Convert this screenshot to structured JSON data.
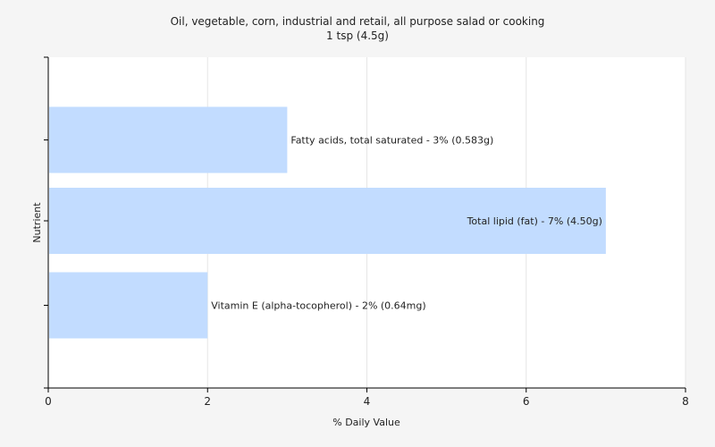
{
  "chart_data": {
    "type": "bar",
    "orientation": "horizontal",
    "title": "Oil, vegetable, corn, industrial and retail, all purpose salad or cooking",
    "subtitle": "1 tsp (4.5g)",
    "xlabel": "% Daily Value",
    "ylabel": "Nutrient",
    "xlim": [
      0,
      8
    ],
    "xticks": [
      0,
      2,
      4,
      6,
      8
    ],
    "grid": true,
    "bar_color": "#c2dcff",
    "categories": [
      "Fatty acids, total saturated",
      "Total lipid (fat)",
      "Vitamin E (alpha-tocopherol)"
    ],
    "values": [
      3,
      7,
      2
    ],
    "data_labels": [
      "Fatty acids, total saturated - 3% (0.583g)",
      "Total lipid (fat) - 7% (4.50g)",
      "Vitamin E (alpha-tocopherol) - 2% (0.64mg)"
    ]
  }
}
